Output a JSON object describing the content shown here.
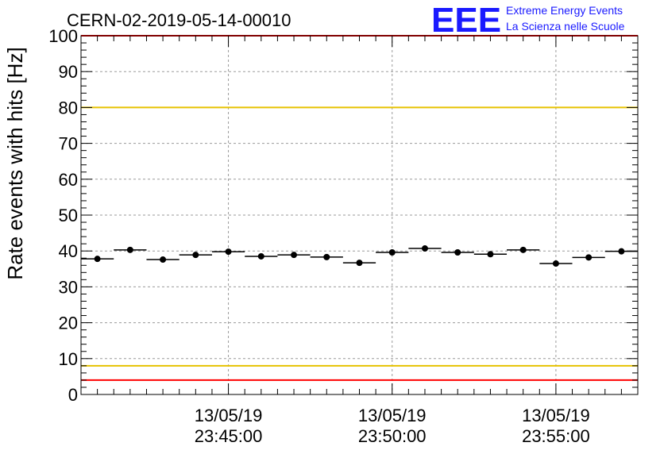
{
  "header": {
    "run_title": "CERN-02-2019-05-14-00010",
    "logo_text": "EEE",
    "logo_line1": "Extreme Energy Events",
    "logo_line2": "La Scienza nelle Scuole"
  },
  "colors": {
    "logo": "#1a1aff",
    "red_threshold": "#ff0000",
    "yellow_threshold": "#e6c200",
    "points": "#000000",
    "grid": "#9a9a9a"
  },
  "chart_data": {
    "type": "scatter",
    "ylabel": "Rate events with hits [Hz]",
    "xlabel": "",
    "ylim": [
      0,
      100
    ],
    "yticks": [
      0,
      10,
      20,
      30,
      40,
      50,
      60,
      70,
      80,
      90,
      100
    ],
    "grid": true,
    "x_tick_labels": [
      {
        "date": "13/05/19",
        "time": "23:45:00",
        "t": "23:45:00"
      },
      {
        "date": "13/05/19",
        "time": "23:50:00",
        "t": "23:50:00"
      },
      {
        "date": "13/05/19",
        "time": "23:55:00",
        "t": "23:55:00"
      }
    ],
    "xlim": [
      "23:40:30",
      "23:57:30"
    ],
    "bin_width_s": 60,
    "series": [
      {
        "points": [
          {
            "x": "23:41:00",
            "y": 37.8
          },
          {
            "x": "23:42:00",
            "y": 40.3
          },
          {
            "x": "23:43:00",
            "y": 37.6
          },
          {
            "x": "23:44:00",
            "y": 38.9
          },
          {
            "x": "23:45:00",
            "y": 39.8
          },
          {
            "x": "23:46:00",
            "y": 38.5
          },
          {
            "x": "23:47:00",
            "y": 38.9
          },
          {
            "x": "23:48:00",
            "y": 38.3
          },
          {
            "x": "23:49:00",
            "y": 36.7
          },
          {
            "x": "23:50:00",
            "y": 39.6
          },
          {
            "x": "23:51:00",
            "y": 40.7
          },
          {
            "x": "23:52:00",
            "y": 39.6
          },
          {
            "x": "23:53:00",
            "y": 39.1
          },
          {
            "x": "23:54:00",
            "y": 40.3
          },
          {
            "x": "23:55:00",
            "y": 36.5
          },
          {
            "x": "23:56:00",
            "y": 38.2
          },
          {
            "x": "23:57:00",
            "y": 39.9
          }
        ]
      }
    ],
    "threshold_lines": [
      {
        "y": 100,
        "color": "red"
      },
      {
        "y": 80,
        "color": "yellow"
      },
      {
        "y": 8,
        "color": "yellow"
      },
      {
        "y": 4,
        "color": "red"
      }
    ]
  }
}
